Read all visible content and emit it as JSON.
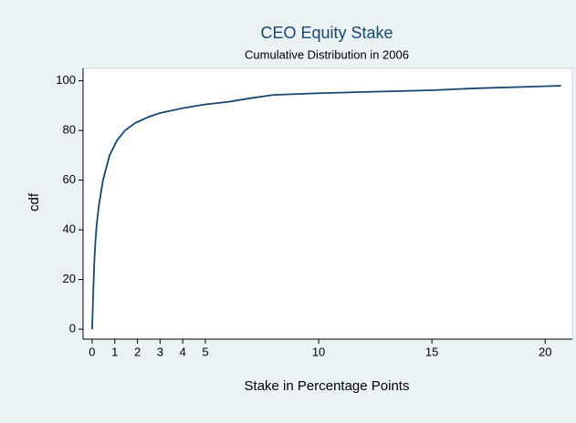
{
  "chart_data": {
    "type": "line",
    "title": "CEO Equity Stake",
    "subtitle": "Cumulative Distribution in 2006",
    "x_label": "Stake in Percentage Points",
    "y_label": "cdf",
    "x": [
      0,
      0.05,
      0.1,
      0.15,
      0.2,
      0.3,
      0.48,
      0.77,
      1.1,
      1.45,
      1.9,
      2.5,
      3,
      4,
      5,
      6,
      7,
      8,
      10,
      12,
      15,
      17,
      20,
      20.7
    ],
    "values": [
      0,
      15,
      28,
      36,
      42,
      50,
      60,
      70,
      76,
      80,
      83,
      85.5,
      87,
      89,
      90.5,
      91.5,
      93,
      94.3,
      95,
      95.5,
      96.2,
      97,
      97.8,
      98
    ],
    "color": "#1a476f",
    "xlim": [
      -0.4,
      21.2
    ],
    "xticks": [
      0,
      1,
      2,
      3,
      4,
      5,
      10,
      15,
      20
    ],
    "ylim": [
      -4,
      105
    ],
    "yticks": [
      0,
      20,
      40,
      60,
      80,
      100
    ],
    "grid": false
  }
}
